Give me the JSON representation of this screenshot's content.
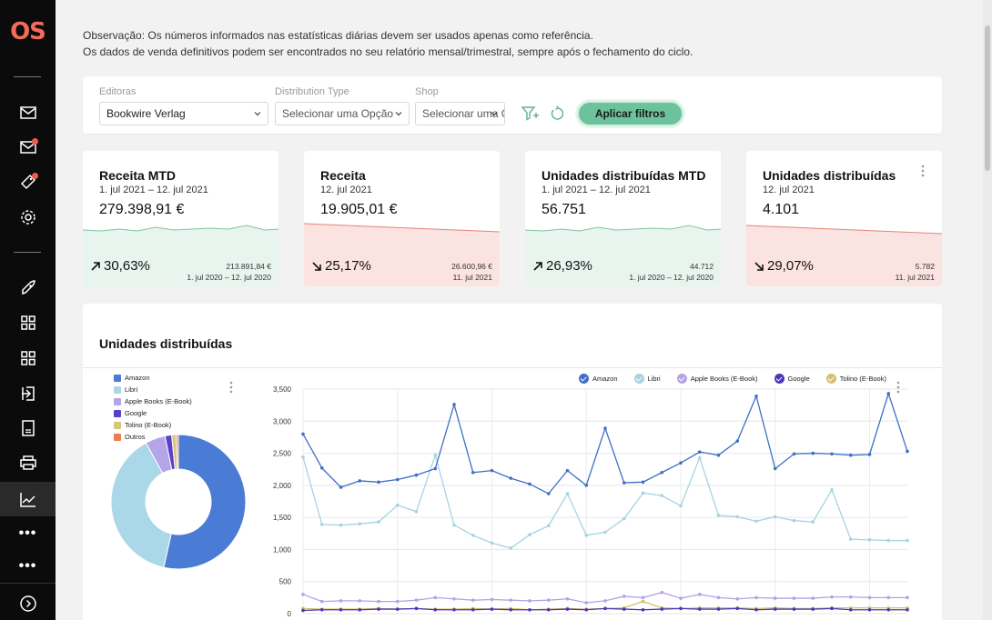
{
  "sidebar": {
    "logo": "OS",
    "items": [
      {
        "icon": "mail-icon"
      },
      {
        "icon": "mail-notification-icon"
      },
      {
        "icon": "ticket-icon"
      },
      {
        "icon": "gear-icon"
      },
      {
        "icon": "rocket-icon"
      },
      {
        "icon": "grid-icon"
      },
      {
        "icon": "grid-icon"
      },
      {
        "icon": "import-icon"
      },
      {
        "icon": "document-icon"
      },
      {
        "icon": "printer-icon"
      },
      {
        "icon": "line-chart-icon",
        "active": true
      },
      {
        "icon": "more-icon",
        "label": "•••"
      },
      {
        "icon": "more-icon",
        "label": "•••"
      },
      {
        "icon": "expand-icon"
      }
    ],
    "notification_color": "#f15b4a"
  },
  "notice": {
    "line1": "Observação: Os números informados nas estatísticas diárias devem ser usados apenas como referência.",
    "line2": "Os dados de venda definitivos podem ser encontrados no seu relatório mensal/trimestral, sempre após o fechamento do ciclo."
  },
  "filters": {
    "editoras_label": "Editoras",
    "editoras_value": "Bookwire Verlag",
    "distribution_label": "Distribution Type",
    "distribution_value": "Selecionar uma Opção",
    "shop_label": "Shop",
    "shop_value": "Selecionar uma Opção",
    "apply_label": "Aplicar filtros",
    "accent": "#6cc29d"
  },
  "kpis": [
    {
      "title": "Receita MTD",
      "date": "1. jul 2021 – 12. jul 2021",
      "value": "279.398,91 €",
      "change": "30,63%",
      "direction": "up",
      "prev_value": "213.891,84 €",
      "prev_date": "1. jul 2020 – 12. jul 2020",
      "color": "#e8f5ef"
    },
    {
      "title": "Receita",
      "date": "12. jul 2021",
      "value": "19.905,01 €",
      "change": "25,17%",
      "direction": "down",
      "prev_value": "26.600,96 €",
      "prev_date": "11. jul 2021",
      "color": "#fbe3e1"
    },
    {
      "title": "Unidades distribuídas MTD",
      "date": "1. jul 2021 – 12. jul 2021",
      "value": "56.751",
      "change": "26,93%",
      "direction": "up",
      "prev_value": "44.712",
      "prev_date": "1. jul 2020 – 12. jul 2020",
      "color": "#e8f5ef"
    },
    {
      "title": "Unidades distribuídas",
      "date": "12. jul 2021",
      "value": "4.101",
      "change": "29,07%",
      "direction": "down",
      "prev_value": "5.782",
      "prev_date": "11. jul 2021",
      "color": "#fbe3e1"
    }
  ],
  "panel": {
    "title": "Unidades distribuídas"
  },
  "chart_data": [
    {
      "type": "pie",
      "donut": true,
      "categories": [
        "Amazon",
        "Libri",
        "Apple Books (E-Book)",
        "Google",
        "Tolino (E-Book)",
        "Outros"
      ],
      "values": [
        53.5,
        38.5,
        4.8,
        1.6,
        1.1,
        0.5
      ],
      "colors": [
        "#4a7bd5",
        "#aad8e8",
        "#b4a5e8",
        "#5a3fc9",
        "#d9c57a",
        "#f07a50"
      ],
      "legend_position": "top-left"
    },
    {
      "type": "line",
      "legend": [
        "Amazon",
        "Libri",
        "Apple Books (E-Book)",
        "Google",
        "Tolino (E-Book)"
      ],
      "ylim": [
        0,
        3500
      ],
      "yticks": [
        "0",
        "500",
        "1,000",
        "1,500",
        "2,000",
        "2,500",
        "3,000",
        "3,500"
      ],
      "grid": true,
      "legend_position": "top-right",
      "series": [
        {
          "name": "Amazon",
          "color": "#3f6fc4",
          "values": [
            2800,
            2270,
            1970,
            2070,
            2050,
            2090,
            2160,
            2260,
            3260,
            2200,
            2230,
            2110,
            2020,
            1870,
            2230,
            2000,
            2890,
            2040,
            2050,
            2200,
            2350,
            2520,
            2470,
            2690,
            3390,
            2260,
            2490,
            2500,
            2490,
            2470,
            2480,
            3430,
            2530
          ]
        },
        {
          "name": "Libri",
          "color": "#a6d3e2",
          "values": [
            2440,
            1390,
            1380,
            1400,
            1430,
            1690,
            1590,
            2470,
            1380,
            1220,
            1100,
            1020,
            1230,
            1370,
            1870,
            1220,
            1270,
            1480,
            1880,
            1840,
            1680,
            2430,
            1530,
            1510,
            1440,
            1510,
            1450,
            1430,
            1930,
            1160,
            1150,
            1140,
            1140
          ]
        },
        {
          "name": "Apple Books (E-Book)",
          "color": "#b3a2e6",
          "values": [
            300,
            190,
            200,
            200,
            190,
            190,
            210,
            250,
            230,
            210,
            220,
            210,
            200,
            210,
            230,
            170,
            200,
            270,
            250,
            330,
            240,
            300,
            250,
            230,
            250,
            240,
            240,
            240,
            260,
            260,
            250,
            250,
            250
          ]
        },
        {
          "name": "Google",
          "color": "#4b36b8",
          "values": [
            50,
            60,
            60,
            60,
            70,
            70,
            80,
            60,
            60,
            60,
            70,
            60,
            60,
            60,
            70,
            60,
            80,
            70,
            60,
            70,
            80,
            70,
            70,
            80,
            60,
            70,
            70,
            70,
            80,
            60,
            60,
            60,
            60
          ]
        },
        {
          "name": "Tolino (E-Book)",
          "color": "#d4c070",
          "values": [
            80,
            70,
            70,
            70,
            80,
            70,
            80,
            70,
            70,
            80,
            70,
            80,
            60,
            70,
            80,
            70,
            80,
            90,
            190,
            90,
            80,
            90,
            90,
            90,
            80,
            90,
            80,
            80,
            90,
            90,
            90,
            90,
            90
          ]
        }
      ]
    }
  ]
}
